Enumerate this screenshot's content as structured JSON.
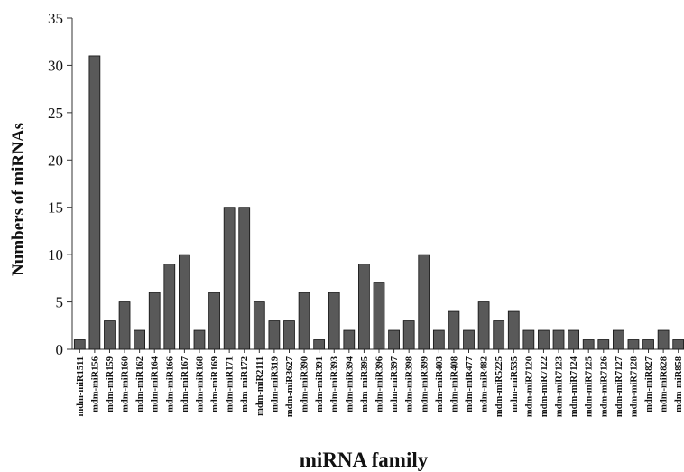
{
  "chart_data": {
    "type": "bar",
    "xlabel": "miRNA family",
    "ylabel": "Numbers of miRNAs",
    "ylim": [
      0,
      35
    ],
    "yticks": [
      0,
      5,
      10,
      15,
      20,
      25,
      30,
      35
    ],
    "grid": false,
    "bar_color": "#595959",
    "categories": [
      "mdm-miR1511",
      "mdm-miR156",
      "mdm-miR159",
      "mdm-miR160",
      "mdm-miR162",
      "mdm-miR164",
      "mdm-miR166",
      "mdm-miR167",
      "mdm-miR168",
      "mdm-miR169",
      "mdm-miR171",
      "mdm-miR172",
      "mdm-miR2111",
      "mdm-miR319",
      "mdm-miR3627",
      "mdm-miR390",
      "mdm-miR391",
      "mdm-miR393",
      "mdm-miR394",
      "mdm-miR395",
      "mdm-miR396",
      "mdm-miR397",
      "mdm-miR398",
      "mdm-miR399",
      "mdm-miR403",
      "mdm-miR408",
      "mdm-miR477",
      "mdm-miR482",
      "mdm-miR5225",
      "mdm-miR535",
      "mdm-miR7120",
      "mdm-miR7122",
      "mdm-miR7123",
      "mdm-miR7124",
      "mdm-miR7125",
      "mdm-miR7126",
      "mdm-miR7127",
      "mdm-miR7128",
      "mdm-miR827",
      "mdm-miR828",
      "mdm-miR858"
    ],
    "values": [
      1,
      31,
      3,
      5,
      2,
      6,
      9,
      10,
      2,
      6,
      15,
      15,
      5,
      3,
      3,
      6,
      1,
      6,
      2,
      9,
      7,
      2,
      3,
      10,
      2,
      4,
      2,
      5,
      3,
      4,
      2,
      2,
      2,
      2,
      1,
      1,
      2,
      1,
      1,
      2,
      1
    ]
  }
}
